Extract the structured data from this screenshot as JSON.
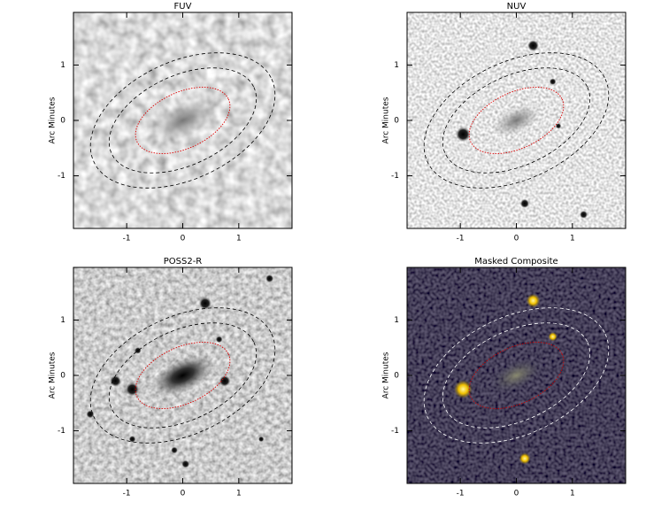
{
  "chart_data": [
    {
      "type": "image",
      "title": "FUV",
      "y_label": "Arc Minutes",
      "xlim": [
        -1.95,
        1.95
      ],
      "ylim": [
        -1.95,
        1.95
      ],
      "xticks": [
        -1,
        0,
        1
      ],
      "yticks": [
        -1,
        0,
        1
      ]
    },
    {
      "type": "image",
      "title": "NUV",
      "y_label": "Arc Minutes",
      "xlim": [
        -1.95,
        1.95
      ],
      "ylim": [
        -1.95,
        1.95
      ],
      "xticks": [
        -1,
        0,
        1
      ],
      "yticks": [
        -1,
        0,
        1
      ]
    },
    {
      "type": "image",
      "title": "POSS2-R",
      "y_label": "Arc Minutes",
      "xlim": [
        -1.95,
        1.95
      ],
      "ylim": [
        -1.95,
        1.95
      ],
      "xticks": [
        -1,
        0,
        1
      ],
      "yticks": [
        -1,
        0,
        1
      ]
    },
    {
      "type": "image",
      "title": "Masked Composite",
      "y_label": "Arc Minutes",
      "xlim": [
        -1.95,
        1.95
      ],
      "ylim": [
        -1.95,
        1.95
      ],
      "xticks": [
        -1,
        0,
        1
      ],
      "yticks": [
        -1,
        0,
        1
      ]
    }
  ]
}
